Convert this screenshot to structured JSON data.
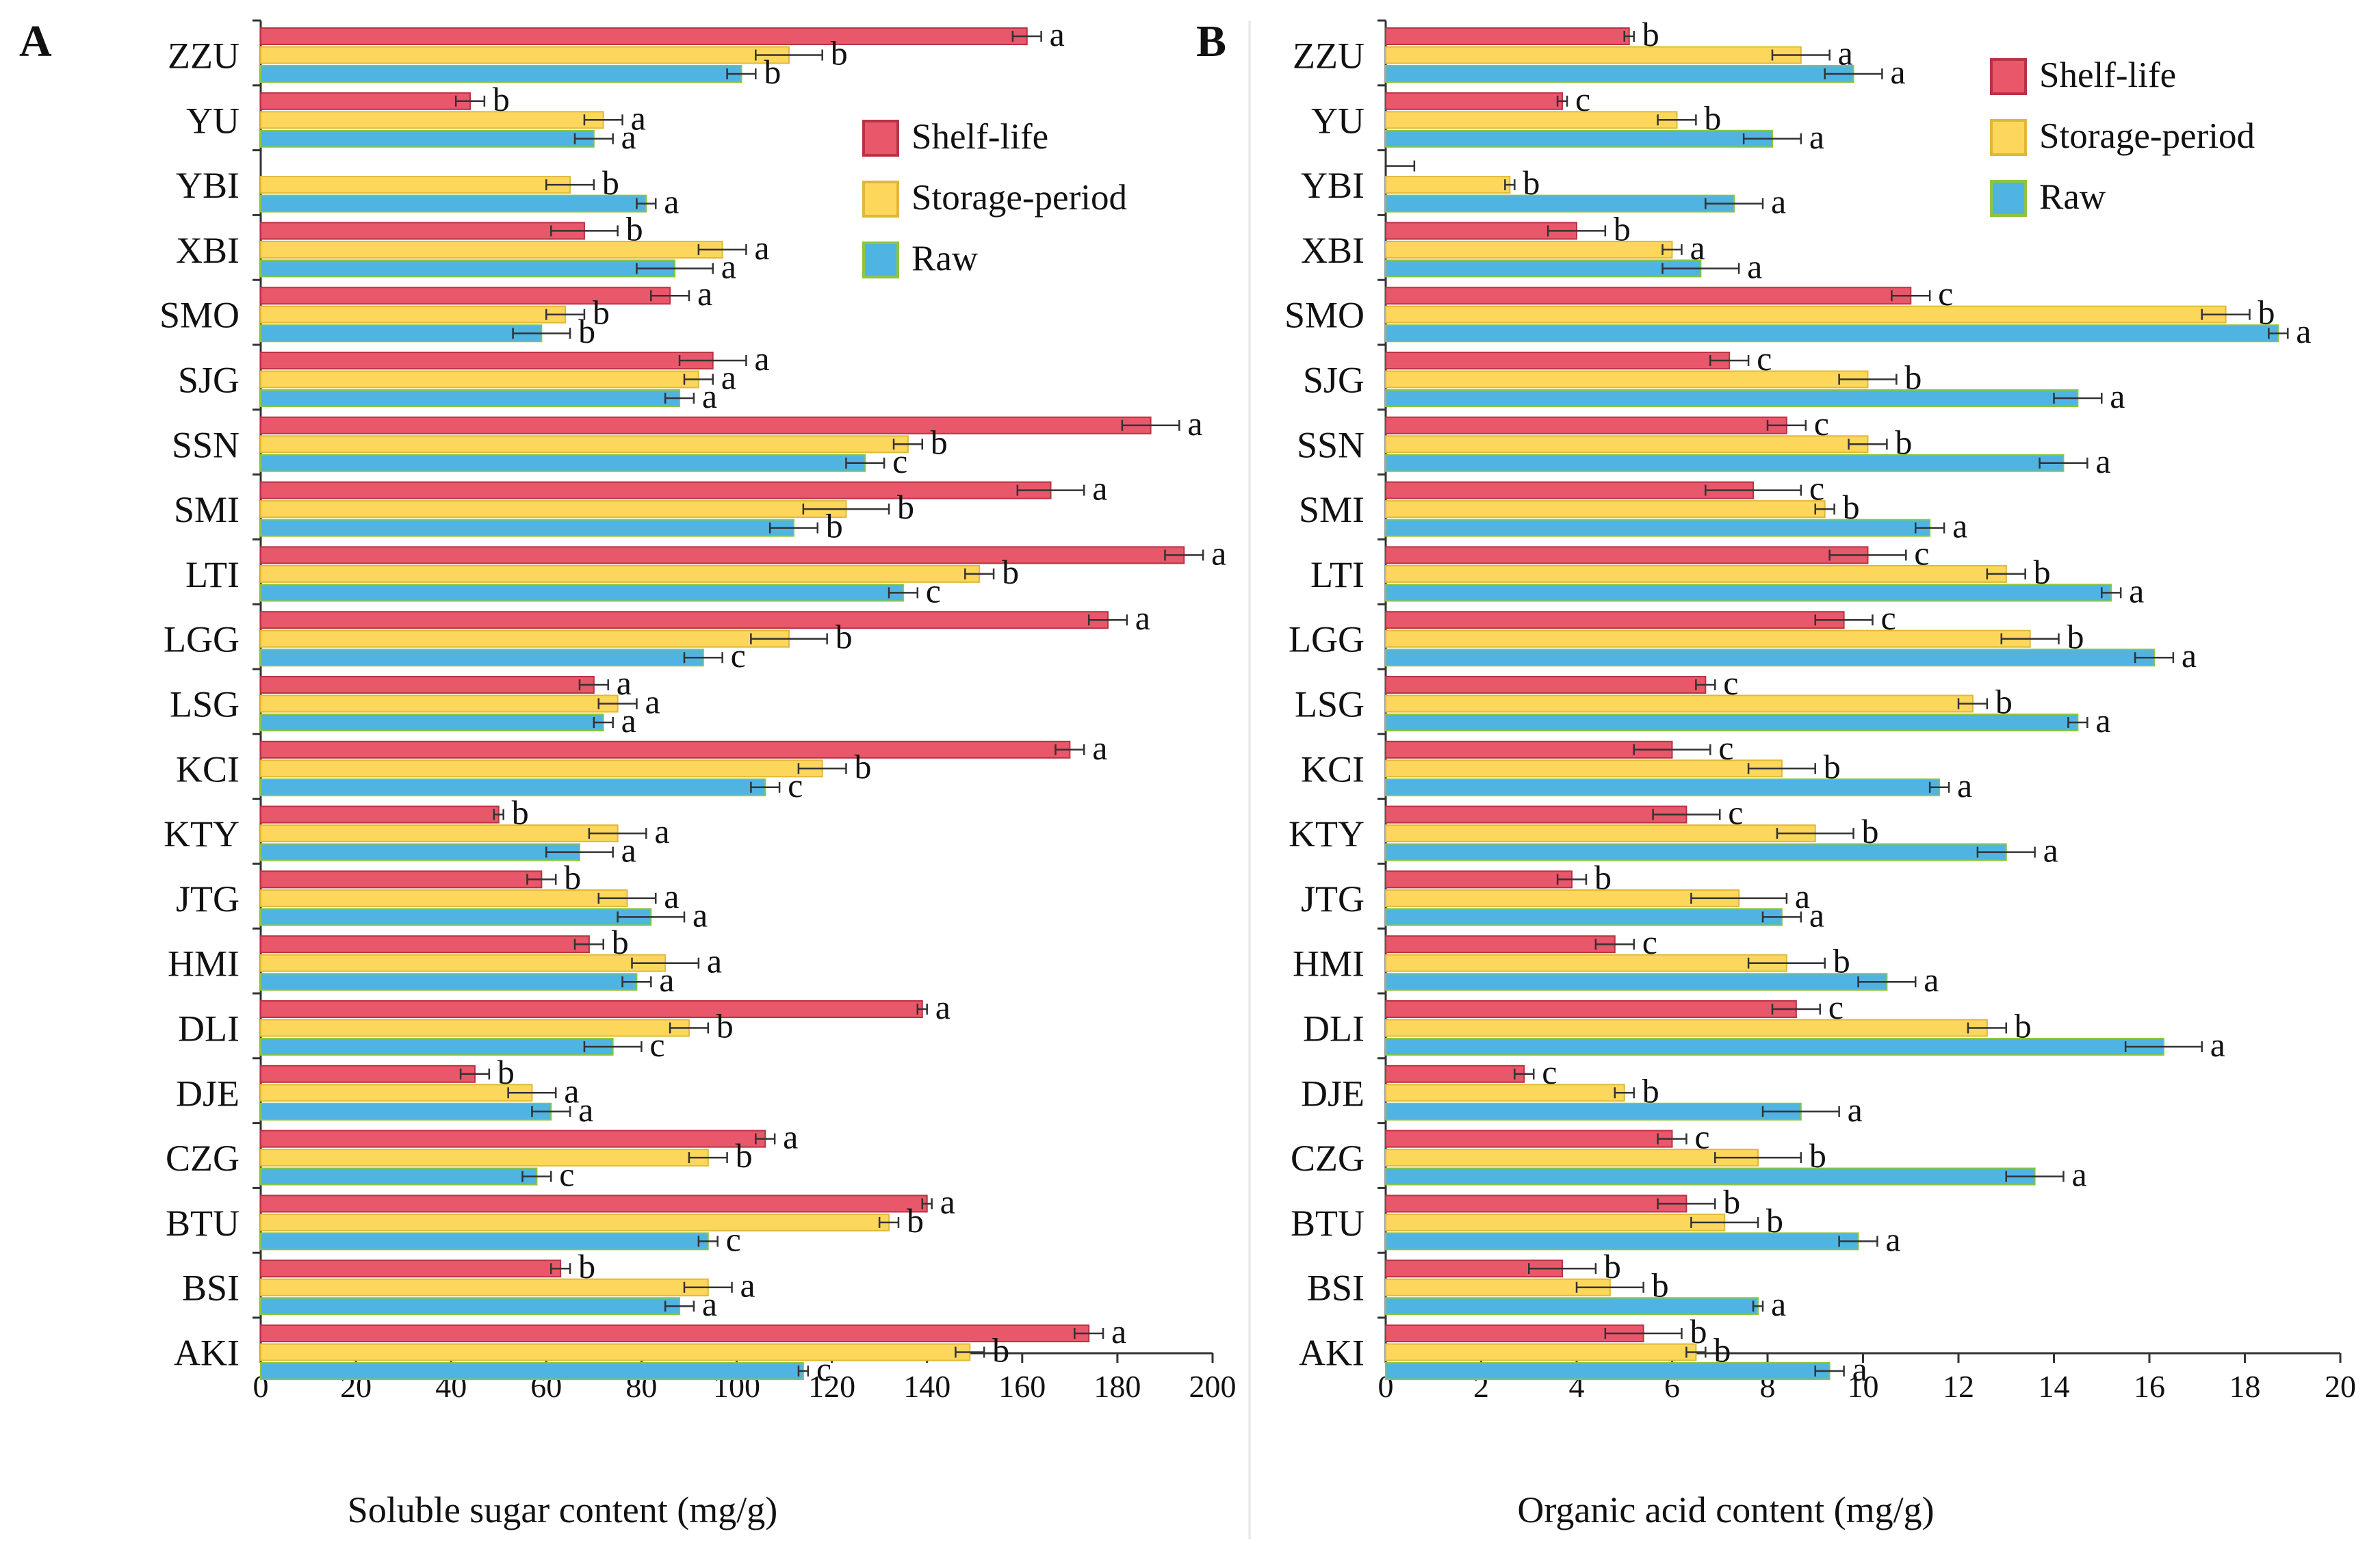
{
  "colors": {
    "shelf_life": "#E8576A",
    "storage_period": "#FDD75B",
    "raw": "#4FB4E2",
    "raw_edge": "#8CC63F",
    "axis": "#333333",
    "error": "#333333"
  },
  "chart_data": [
    {
      "type": "bar",
      "orientation": "horizontal",
      "panel_label": "A",
      "title": "",
      "xlabel": "Soluble sugar content (mg/g)",
      "ylabel": "",
      "xlim": [
        0,
        200
      ],
      "xticks": [
        "0",
        "20",
        "40",
        "60",
        "80",
        "100",
        "120",
        "140",
        "160",
        "180",
        "200"
      ],
      "legend_position": "top-right",
      "categories": [
        "ZZU",
        "YU",
        "YBI",
        "XBI",
        "SMO",
        "SJG",
        "SSN",
        "SMI",
        "LTI",
        "LGG",
        "LSG",
        "KCI",
        "KTY",
        "JTG",
        "HMI",
        "DLI",
        "DJE",
        "CZG",
        "BTU",
        "BSI",
        "AKI"
      ],
      "series": [
        {
          "name": "Shelf-life",
          "values": [
            161,
            44,
            0,
            68,
            86,
            95,
            187,
            166,
            194,
            178,
            70,
            170,
            50,
            59,
            69,
            139,
            45,
            106,
            140,
            63,
            174
          ],
          "errors": [
            3,
            3,
            0,
            7,
            4,
            7,
            6,
            7,
            4,
            4,
            3,
            3,
            1,
            3,
            3,
            1,
            3,
            2,
            1,
            2,
            3
          ],
          "labels": [
            "a",
            "b",
            "",
            "b",
            "a",
            "a",
            "a",
            "a",
            "a",
            "a",
            "a",
            "a",
            "b",
            "b",
            "b",
            "a",
            "b",
            "a",
            "a",
            "b",
            "a"
          ]
        },
        {
          "name": "Storage-period",
          "values": [
            111,
            72,
            65,
            97,
            64,
            92,
            136,
            123,
            151,
            111,
            75,
            118,
            75,
            77,
            85,
            90,
            57,
            94,
            132,
            94,
            149
          ],
          "errors": [
            7,
            4,
            5,
            5,
            4,
            3,
            3,
            9,
            3,
            8,
            4,
            5,
            6,
            6,
            7,
            4,
            5,
            4,
            2,
            5,
            3
          ],
          "labels": [
            "b",
            "a",
            "b",
            "a",
            "b",
            "a",
            "b",
            "b",
            "b",
            "b",
            "a",
            "b",
            "a",
            "a",
            "a",
            "b",
            "a",
            "b",
            "b",
            "a",
            "b"
          ]
        },
        {
          "name": "Raw",
          "values": [
            101,
            70,
            81,
            87,
            59,
            88,
            127,
            112,
            135,
            93,
            72,
            106,
            67,
            82,
            79,
            74,
            61,
            58,
            94,
            88,
            114
          ],
          "errors": [
            3,
            4,
            2,
            8,
            6,
            3,
            4,
            5,
            3,
            4,
            2,
            3,
            7,
            7,
            3,
            6,
            4,
            3,
            2,
            3,
            1
          ],
          "labels": [
            "b",
            "a",
            "a",
            "a",
            "b",
            "a",
            "c",
            "b",
            "c",
            "c",
            "a",
            "c",
            "a",
            "a",
            "a",
            "c",
            "a",
            "c",
            "c",
            "a",
            "c"
          ]
        }
      ]
    },
    {
      "type": "bar",
      "orientation": "horizontal",
      "panel_label": "B",
      "title": "",
      "xlabel": "Organic acid content (mg/g)",
      "ylabel": "",
      "xlim": [
        0,
        20
      ],
      "xticks": [
        "0",
        "2",
        "4",
        "6",
        "8",
        "10",
        "12",
        "14",
        "16",
        "18",
        "20"
      ],
      "legend_position": "top-right",
      "categories": [
        "ZZU",
        "YU",
        "YBI",
        "XBI",
        "SMO",
        "SJG",
        "SSN",
        "SMI",
        "LTI",
        "LGG",
        "LSG",
        "KCI",
        "KTY",
        "JTG",
        "HMI",
        "DLI",
        "DJE",
        "CZG",
        "BTU",
        "BSI",
        "AKI"
      ],
      "series": [
        {
          "name": "Shelf-life",
          "values": [
            5.1,
            3.7,
            0,
            4.0,
            11.0,
            7.2,
            8.4,
            7.7,
            10.1,
            9.6,
            6.7,
            6.0,
            6.3,
            3.9,
            4.8,
            8.6,
            2.9,
            6.0,
            6.3,
            3.7,
            5.4
          ],
          "errors": [
            0.1,
            0.1,
            0.6,
            0.6,
            0.4,
            0.4,
            0.4,
            1.0,
            0.8,
            0.6,
            0.2,
            0.8,
            0.7,
            0.3,
            0.4,
            0.5,
            0.2,
            0.3,
            0.6,
            0.7,
            0.8
          ],
          "labels": [
            "b",
            "c",
            "",
            "b",
            "c",
            "c",
            "c",
            "c",
            "c",
            "c",
            "c",
            "c",
            "c",
            "b",
            "c",
            "c",
            "c",
            "c",
            "b",
            "b",
            "b"
          ]
        },
        {
          "name": "Storage-period",
          "values": [
            8.7,
            6.1,
            2.6,
            6.0,
            17.6,
            10.1,
            10.1,
            9.2,
            13.0,
            13.5,
            12.3,
            8.3,
            9.0,
            7.4,
            8.4,
            12.6,
            5.0,
            7.8,
            7.1,
            4.7,
            6.5
          ],
          "errors": [
            0.6,
            0.4,
            0.1,
            0.2,
            0.5,
            0.6,
            0.4,
            0.2,
            0.4,
            0.6,
            0.3,
            0.7,
            0.8,
            1.0,
            0.8,
            0.4,
            0.2,
            0.9,
            0.7,
            0.7,
            0.2
          ],
          "labels": [
            "a",
            "b",
            "b",
            "a",
            "b",
            "b",
            "b",
            "b",
            "b",
            "b",
            "b",
            "b",
            "b",
            "a",
            "b",
            "b",
            "b",
            "b",
            "b",
            "b",
            "b"
          ]
        },
        {
          "name": "Raw",
          "values": [
            9.8,
            8.1,
            7.3,
            6.6,
            18.7,
            14.5,
            14.2,
            11.4,
            15.2,
            16.1,
            14.5,
            11.6,
            13.0,
            8.3,
            10.5,
            16.3,
            8.7,
            13.6,
            9.9,
            7.8,
            9.3
          ],
          "errors": [
            0.6,
            0.6,
            0.6,
            0.8,
            0.2,
            0.5,
            0.5,
            0.3,
            0.2,
            0.4,
            0.2,
            0.2,
            0.6,
            0.4,
            0.6,
            0.8,
            0.8,
            0.6,
            0.4,
            0.1,
            0.3
          ],
          "labels": [
            "a",
            "a",
            "a",
            "a",
            "a",
            "a",
            "a",
            "a",
            "a",
            "a",
            "a",
            "a",
            "a",
            "a",
            "a",
            "a",
            "a",
            "a",
            "a",
            "a",
            "a"
          ]
        }
      ]
    }
  ]
}
